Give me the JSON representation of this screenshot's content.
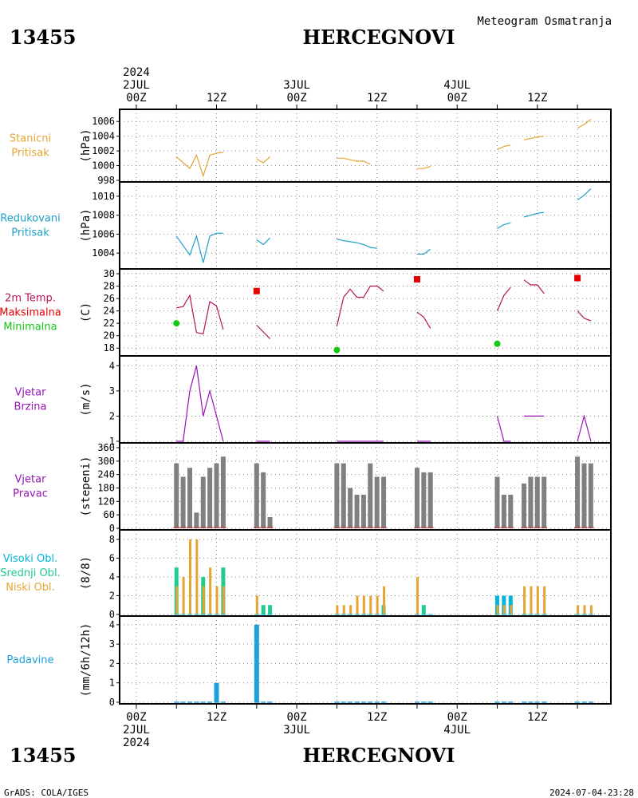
{
  "station_id": "13455",
  "station_name": "HERCEGNOVI",
  "meteogram_title": "Meteogram Osmatranja",
  "footer_left": "GrADS: COLA/IGES",
  "footer_right": "2024-07-04-23:28",
  "time_axis": {
    "top_labels": [
      {
        "hour": 0,
        "lines": [
          "2024",
          "2JUL",
          "00Z"
        ]
      },
      {
        "hour": 12,
        "lines": [
          "12Z"
        ]
      },
      {
        "hour": 24,
        "lines": [
          "3JUL",
          "00Z"
        ]
      },
      {
        "hour": 36,
        "lines": [
          "12Z"
        ]
      },
      {
        "hour": 48,
        "lines": [
          "4JUL",
          "00Z"
        ]
      },
      {
        "hour": 60,
        "lines": [
          "12Z"
        ]
      }
    ],
    "bottom_labels": [
      {
        "hour": 0,
        "lines": [
          "00Z",
          "2JUL",
          "2024"
        ]
      },
      {
        "hour": 12,
        "lines": [
          "12Z"
        ]
      },
      {
        "hour": 24,
        "lines": [
          "00Z",
          "3JUL"
        ]
      },
      {
        "hour": 36,
        "lines": [
          "12Z"
        ]
      },
      {
        "hour": 48,
        "lines": [
          "00Z",
          "4JUL"
        ]
      },
      {
        "hour": 60,
        "lines": [
          "12Z"
        ]
      }
    ]
  },
  "colors": {
    "pressure": "#e6a532",
    "reduced_pressure": "#1ea0c8",
    "temperature": "#b4145a",
    "tmax": "#e60000",
    "tmin": "#14c814",
    "wind": "#9614b4",
    "wind_dir_bar": "#808080",
    "wind_dir_base": "#c83232",
    "cloud_high": "#00b4dc",
    "cloud_mid": "#1ecc8c",
    "cloud_low": "#e6a532",
    "precip": "#1ea0dc"
  },
  "chart_data": [
    {
      "type": "line",
      "name": "station-pressure",
      "labels": [
        "Stanicni",
        "Pritisak"
      ],
      "label_colors": [
        "#e6a532",
        "#e6a532"
      ],
      "ylabel": "(hPa)",
      "ylim": [
        998,
        1007
      ],
      "yticks": [
        998,
        1000,
        1002,
        1004,
        1006
      ],
      "grid": true,
      "segments": [
        [
          [
            6,
            1001.2
          ],
          [
            8,
            999.6
          ],
          [
            9,
            1001.4
          ],
          [
            10,
            998.6
          ],
          [
            11,
            1001.4
          ],
          [
            12,
            1001.7
          ],
          [
            13,
            1001.8
          ]
        ],
        [
          [
            18,
            1000.9
          ],
          [
            19,
            1000.4
          ],
          [
            20,
            1001.2
          ]
        ],
        [
          [
            30,
            1001.0
          ],
          [
            31,
            1001.0
          ],
          [
            32,
            1000.8
          ],
          [
            33,
            1000.6
          ],
          [
            34,
            1000.6
          ],
          [
            35,
            1000.2
          ]
        ],
        [
          [
            42,
            999.6
          ],
          [
            43,
            999.6
          ],
          [
            44,
            999.9
          ]
        ],
        [
          [
            54,
            1002.2
          ],
          [
            55,
            1002.6
          ],
          [
            56,
            1002.8
          ]
        ],
        [
          [
            58,
            1003.5
          ],
          [
            60,
            1003.9
          ],
          [
            61,
            1004.0
          ]
        ],
        [
          [
            66,
            1005.1
          ],
          [
            67,
            1005.6
          ],
          [
            68,
            1006.3
          ]
        ]
      ]
    },
    {
      "type": "line",
      "name": "reduced-pressure",
      "labels": [
        "Redukovani",
        "Pritisak"
      ],
      "label_colors": [
        "#1ea0c8",
        "#1ea0c8"
      ],
      "ylabel": "(hPa)",
      "ylim": [
        1002.5,
        1011
      ],
      "yticks": [
        1004,
        1006,
        1008,
        1010
      ],
      "grid": true,
      "segments": [
        [
          [
            6,
            1005.8
          ],
          [
            8,
            1003.8
          ],
          [
            9,
            1005.8
          ],
          [
            10,
            1003.0
          ],
          [
            11,
            1005.8
          ],
          [
            12,
            1006.1
          ],
          [
            13,
            1006.1
          ]
        ],
        [
          [
            18,
            1005.4
          ],
          [
            19,
            1004.9
          ],
          [
            20,
            1005.6
          ]
        ],
        [
          [
            30,
            1005.5
          ],
          [
            31,
            1005.3
          ],
          [
            32,
            1005.2
          ],
          [
            33,
            1005.1
          ],
          [
            34,
            1004.9
          ],
          [
            35,
            1004.6
          ],
          [
            36,
            1004.5
          ]
        ],
        [
          [
            42,
            1003.9
          ],
          [
            43,
            1003.9
          ],
          [
            44,
            1004.4
          ]
        ],
        [
          [
            54,
            1006.6
          ],
          [
            55,
            1007.0
          ],
          [
            56,
            1007.2
          ]
        ],
        [
          [
            58,
            1007.8
          ],
          [
            60,
            1008.2
          ],
          [
            61,
            1008.3
          ]
        ],
        [
          [
            66,
            1009.6
          ],
          [
            67,
            1010.1
          ],
          [
            68,
            1010.8
          ]
        ]
      ]
    },
    {
      "type": "line",
      "name": "temperature",
      "labels": [
        "2m Temp.",
        "Maksimalna",
        "Minimalna"
      ],
      "label_colors": [
        "#b4145a",
        "#e60000",
        "#14c814"
      ],
      "ylabel": "(C)",
      "ylim": [
        17,
        30
      ],
      "yticks": [
        18,
        20,
        22,
        24,
        26,
        28,
        30
      ],
      "grid": true,
      "segments": [
        [
          [
            6,
            24.5
          ],
          [
            7,
            24.7
          ],
          [
            8,
            26.5
          ],
          [
            9,
            20.5
          ],
          [
            10,
            20.3
          ],
          [
            11,
            25.5
          ],
          [
            12,
            24.8
          ],
          [
            13,
            21.0
          ]
        ],
        [
          [
            18,
            21.7
          ],
          [
            20,
            19.5
          ]
        ],
        [
          [
            30,
            21.5
          ],
          [
            31,
            26.2
          ],
          [
            32,
            27.5
          ],
          [
            33,
            26.2
          ],
          [
            34,
            26.2
          ],
          [
            35,
            28.0
          ],
          [
            36,
            28.0
          ],
          [
            37,
            27.2
          ]
        ],
        [
          [
            42,
            23.8
          ],
          [
            43,
            23.0
          ],
          [
            44,
            21.2
          ]
        ],
        [
          [
            54,
            24.0
          ],
          [
            55,
            26.5
          ],
          [
            56,
            27.8
          ]
        ],
        [
          [
            58,
            29.0
          ],
          [
            59,
            28.2
          ],
          [
            60,
            28.2
          ],
          [
            61,
            26.8
          ]
        ],
        [
          [
            66,
            24.0
          ],
          [
            67,
            22.8
          ],
          [
            68,
            22.4
          ]
        ]
      ],
      "tmax": [
        [
          18,
          27.2
        ],
        [
          42,
          29.1
        ],
        [
          66,
          29.3
        ]
      ],
      "tmin": [
        [
          6,
          22.0
        ],
        [
          30,
          17.7
        ],
        [
          54,
          18.7
        ]
      ]
    },
    {
      "type": "line",
      "name": "wind-speed",
      "labels": [
        "Vjetar",
        "Brzina"
      ],
      "label_colors": [
        "#9614b4",
        "#9614b4"
      ],
      "ylabel": "(m/s)",
      "ylim": [
        1,
        4.2
      ],
      "yticks": [
        1,
        2,
        3,
        4
      ],
      "grid": true,
      "segments": [
        [
          [
            6,
            1.0
          ],
          [
            7,
            1.0
          ],
          [
            8,
            3.0
          ],
          [
            9,
            4.0
          ],
          [
            10,
            2.0
          ],
          [
            11,
            3.0
          ],
          [
            12,
            2.0
          ],
          [
            13,
            1.0
          ]
        ],
        [
          [
            18,
            1.0
          ],
          [
            20,
            1.0
          ]
        ],
        [
          [
            30,
            1.0
          ],
          [
            37,
            1.0
          ]
        ],
        [
          [
            42,
            1.0
          ],
          [
            44,
            1.0
          ]
        ],
        [
          [
            54,
            2.0
          ],
          [
            55,
            1.0
          ],
          [
            56,
            1.0
          ]
        ],
        [
          [
            58,
            2.0
          ],
          [
            61,
            2.0
          ]
        ],
        [
          [
            66,
            1.0
          ],
          [
            67,
            2.0
          ],
          [
            68,
            1.0
          ]
        ]
      ]
    },
    {
      "type": "bar",
      "name": "wind-direction",
      "labels": [
        "Vjetar",
        "Pravac"
      ],
      "label_colors": [
        "#9614b4",
        "#9614b4"
      ],
      "ylabel": "(stepeni)",
      "ylim": [
        0,
        360
      ],
      "yticks": [
        0,
        60,
        120,
        180,
        240,
        300,
        360
      ],
      "grid": true,
      "x": [
        6,
        7,
        8,
        9,
        10,
        11,
        12,
        13,
        18,
        19,
        20,
        30,
        31,
        32,
        33,
        34,
        35,
        36,
        37,
        42,
        43,
        44,
        54,
        55,
        56,
        58,
        59,
        60,
        61,
        66,
        67,
        68
      ],
      "values": [
        290,
        230,
        270,
        70,
        230,
        270,
        290,
        320,
        290,
        250,
        50,
        290,
        290,
        180,
        150,
        150,
        290,
        230,
        230,
        270,
        250,
        250,
        230,
        150,
        150,
        200,
        230,
        230,
        230,
        320,
        290,
        290
      ]
    },
    {
      "type": "bar",
      "name": "cloud-cover",
      "labels": [
        "Visoki Obl.",
        "Srednji Obl.",
        "Niski Obl."
      ],
      "label_colors": [
        "#00b4dc",
        "#1ecc8c",
        "#e6a532"
      ],
      "ylabel": "(8/8)",
      "ylim": [
        0,
        8.5
      ],
      "yticks": [
        0,
        2,
        4,
        6,
        8
      ],
      "grid": true,
      "x": [
        6,
        7,
        8,
        9,
        10,
        11,
        12,
        13,
        18,
        19,
        20,
        30,
        31,
        32,
        33,
        34,
        35,
        36,
        37,
        42,
        43,
        44,
        54,
        55,
        56,
        58,
        59,
        60,
        61,
        66,
        67,
        68
      ],
      "series": [
        {
          "name": "Visoki Obl.",
          "values": [
            0,
            0,
            0,
            0,
            0,
            0,
            0,
            0,
            0,
            0,
            0,
            0,
            0,
            0,
            0,
            0,
            0,
            0,
            0,
            0,
            0,
            0,
            2,
            2,
            2,
            0,
            0,
            0,
            0,
            0,
            0,
            0
          ]
        },
        {
          "name": "Srednji Obl.",
          "values": [
            5,
            0,
            0,
            0,
            4,
            0,
            0,
            5,
            0,
            1,
            1,
            0,
            0,
            0,
            0,
            0,
            0,
            0,
            1,
            0,
            1,
            0,
            0,
            0,
            0,
            0,
            0,
            0,
            0,
            0,
            0,
            0
          ]
        },
        {
          "name": "Niski Obl.",
          "values": [
            3,
            4,
            8,
            8,
            3,
            5,
            3,
            3,
            2,
            0,
            0,
            1,
            1,
            1,
            2,
            2,
            2,
            2,
            3,
            4,
            0,
            0,
            1,
            1,
            1,
            3,
            3,
            3,
            3,
            1,
            1,
            1
          ]
        }
      ]
    },
    {
      "type": "bar",
      "name": "precipitation",
      "labels": [
        "Padavine"
      ],
      "label_colors": [
        "#1ea0dc"
      ],
      "ylabel": "(mm/6h/12h)",
      "ylim": [
        0,
        4.2
      ],
      "yticks": [
        0,
        1,
        2,
        3,
        4
      ],
      "grid": true,
      "x": [
        6,
        7,
        8,
        9,
        10,
        11,
        12,
        13,
        18,
        19,
        20,
        30,
        31,
        32,
        33,
        34,
        35,
        36,
        37,
        42,
        43,
        44,
        54,
        55,
        56,
        58,
        59,
        60,
        61,
        66,
        67,
        68
      ],
      "values": [
        0,
        0,
        0,
        0,
        0,
        0,
        1.0,
        0,
        4.0,
        0,
        0,
        0,
        0,
        0,
        0,
        0,
        0,
        0,
        0,
        0,
        0,
        0,
        0,
        0,
        0,
        0,
        0,
        0,
        0,
        0,
        0,
        0
      ]
    }
  ]
}
